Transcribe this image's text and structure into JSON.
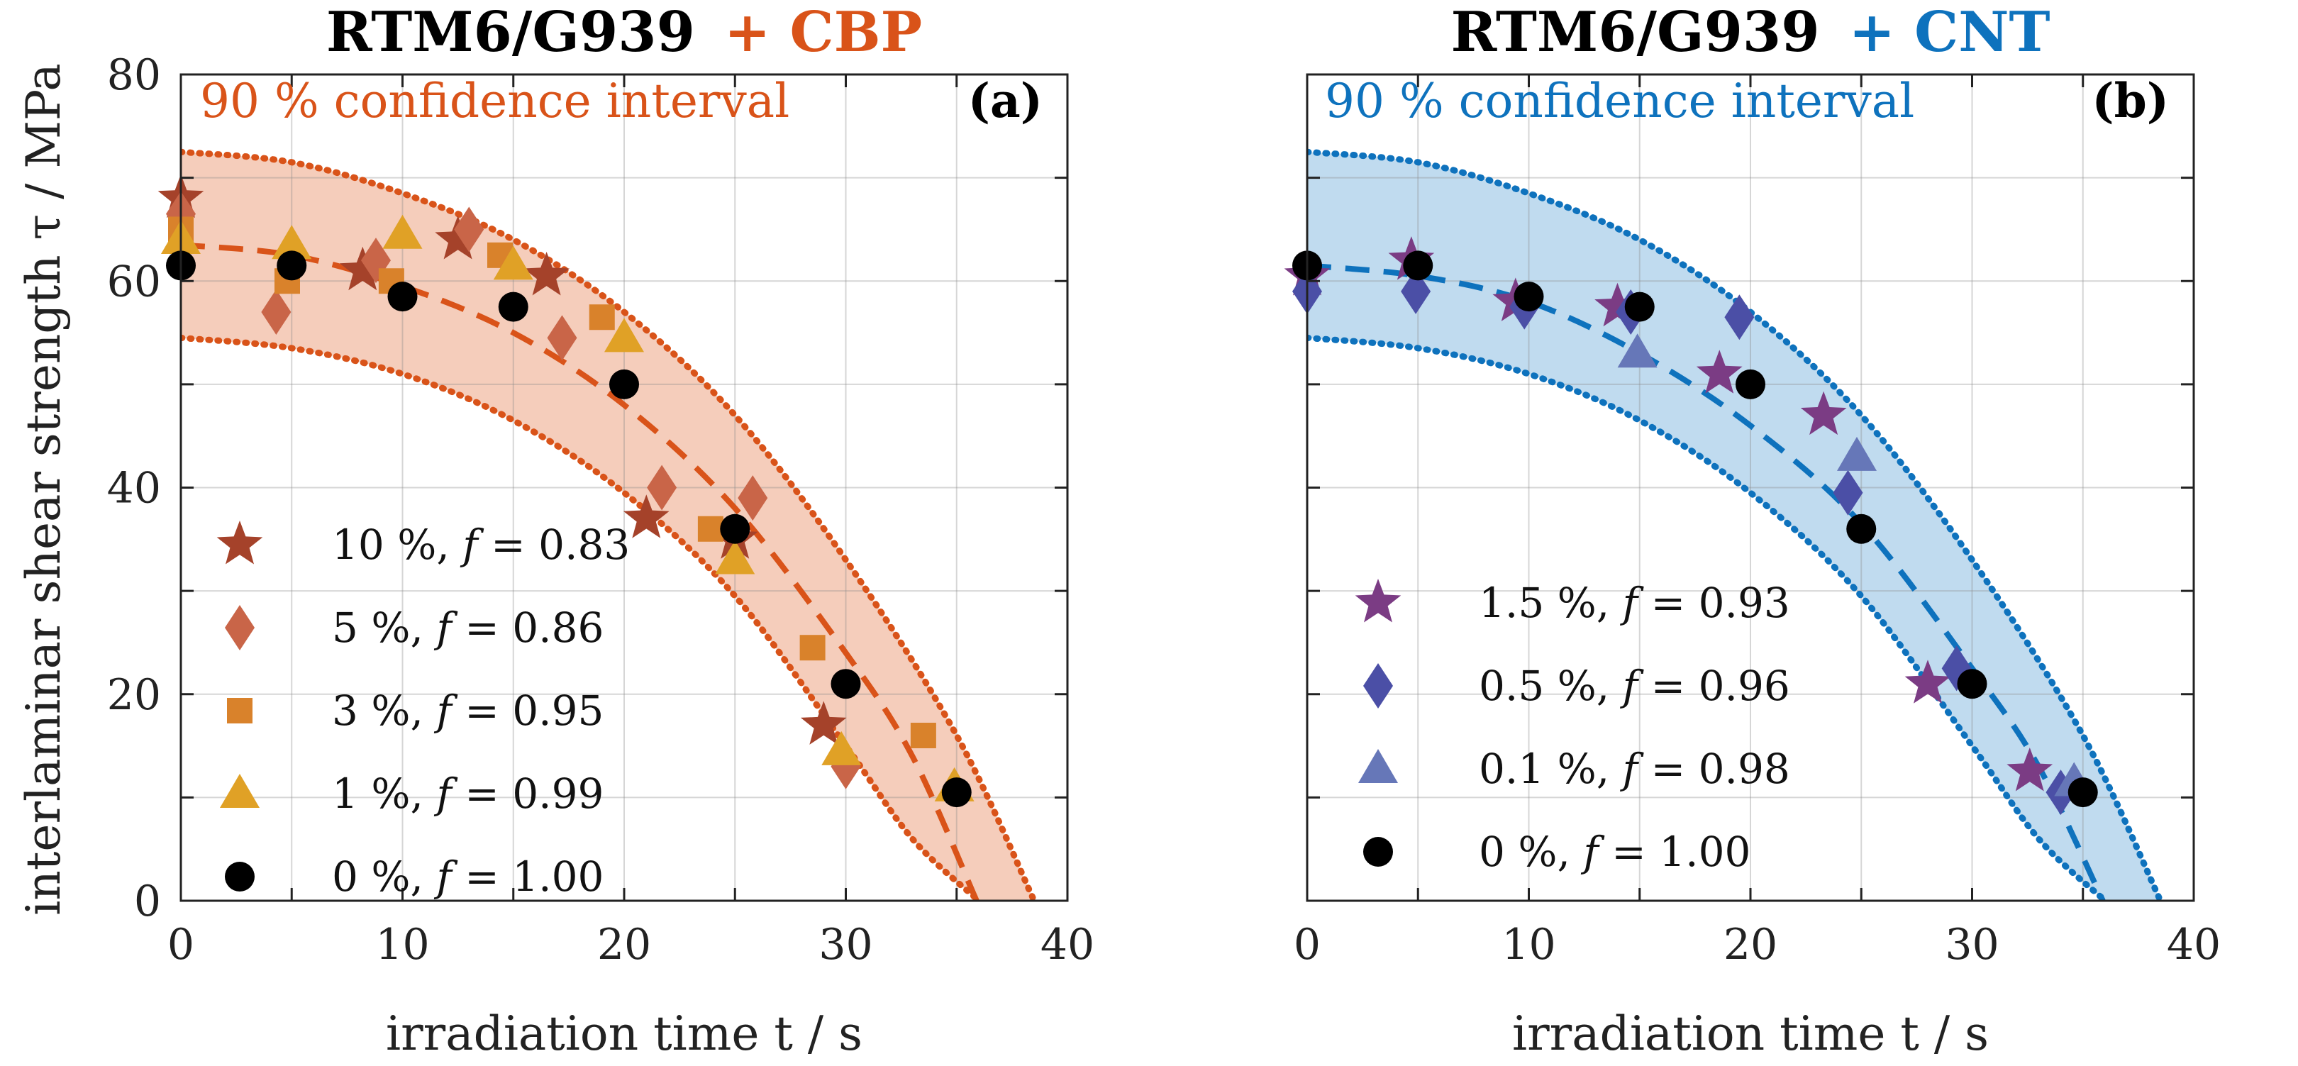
{
  "chart_data": [
    {
      "type": "scatter",
      "panel_label": "(a)",
      "title_main": "RTM6/G939",
      "title_suffix": "+ CBP",
      "title_color": "#d95319",
      "annotation": "90 % confidence interval",
      "annotation_color": "#d95319",
      "xlabel": "irradiation time t / s",
      "ylabel": "interlaminar shear strength τ / MPa",
      "xlim": [
        0,
        40
      ],
      "ylim": [
        0,
        80
      ],
      "xticks": [
        "0",
        "10",
        "20",
        "30",
        "40"
      ],
      "yticks": [
        "0",
        "20",
        "40",
        "60",
        "80"
      ],
      "grid": true,
      "fit": {
        "description": "dashed fit curve",
        "x": [
          0,
          5,
          10,
          15,
          20,
          25,
          30,
          33,
          35.9
        ],
        "y": [
          63.5,
          62.5,
          59.5,
          55,
          48,
          38,
          24,
          14,
          0
        ],
        "color": "#d95319"
      },
      "ci_band": {
        "upper_x": [
          0,
          5,
          10,
          15,
          20,
          25,
          30,
          35,
          38.5
        ],
        "upper_y": [
          72.5,
          71.5,
          68.5,
          64,
          57,
          47,
          33,
          16,
          0
        ],
        "lower_x": [
          0,
          5,
          10,
          15,
          20,
          25,
          30,
          33,
          36
        ],
        "lower_y": [
          54.5,
          53.5,
          51,
          46.5,
          39.5,
          29.5,
          15,
          6,
          0
        ],
        "fill": "#f5cdbb",
        "line_color": "#d95319"
      },
      "series": [
        {
          "name": "10 %",
          "f": "0.83",
          "marker": "star",
          "color": "#a5422a",
          "x": [
            0,
            8.2,
            12.5,
            16.5,
            21,
            25,
            29
          ],
          "y": [
            68,
            61,
            64,
            60.5,
            37,
            35,
            17
          ]
        },
        {
          "name": "5 %",
          "f": "0.86",
          "marker": "diamond",
          "color": "#c96548",
          "x": [
            0,
            4.3,
            8.8,
            13,
            17.2,
            21.7,
            25.8,
            30
          ],
          "y": [
            66.5,
            57,
            62,
            65,
            54.5,
            40,
            39,
            13
          ]
        },
        {
          "name": "3 %",
          "f": "0.95",
          "marker": "square",
          "color": "#d9822b",
          "x": [
            0,
            4.8,
            9.5,
            14.4,
            19,
            23.9,
            28.5,
            33.5
          ],
          "y": [
            65,
            60,
            60,
            62.5,
            56.5,
            36,
            24.5,
            16
          ]
        },
        {
          "name": "1 %",
          "f": "0.99",
          "marker": "triangle",
          "color": "#e0a126",
          "x": [
            0,
            5,
            10,
            15,
            20,
            25,
            29.8,
            34.9
          ],
          "y": [
            64,
            63.5,
            64.5,
            61.5,
            54.5,
            33,
            14.5,
            11
          ]
        },
        {
          "name": "0 %",
          "f": "1.00",
          "marker": "circle",
          "color": "#000000",
          "x": [
            0,
            5,
            10,
            15,
            20,
            25,
            30,
            35
          ],
          "y": [
            61.5,
            61.5,
            58.5,
            57.5,
            50,
            36,
            21,
            10.5
          ]
        }
      ]
    },
    {
      "type": "scatter",
      "panel_label": "(b)",
      "title_main": "RTM6/G939",
      "title_suffix": "+ CNT",
      "title_color": "#0e72bd",
      "annotation": "90 % confidence interval",
      "annotation_color": "#0e72bd",
      "xlabel": "irradiation time t / s",
      "ylabel": "",
      "xlim": [
        0,
        40
      ],
      "ylim": [
        0,
        80
      ],
      "xticks": [
        "0",
        "10",
        "20",
        "30",
        "40"
      ],
      "yticks": [],
      "grid": true,
      "fit": {
        "description": "dashed fit curve",
        "x": [
          0,
          5,
          10,
          15,
          20,
          25,
          30,
          33,
          35.9
        ],
        "y": [
          61.5,
          60.5,
          58,
          53,
          46,
          36.5,
          22.5,
          13,
          0
        ],
        "color": "#0e72bd"
      },
      "ci_band": {
        "upper_x": [
          0,
          5,
          10,
          15,
          20,
          25,
          30,
          35,
          38.5
        ],
        "upper_y": [
          72.5,
          71.5,
          68.5,
          64,
          57,
          47,
          33,
          16,
          0
        ],
        "lower_x": [
          0,
          5,
          10,
          15,
          20,
          25,
          30,
          33,
          36
        ],
        "lower_y": [
          54.5,
          53.5,
          51,
          46.5,
          39.5,
          29.5,
          15,
          6,
          0
        ],
        "fill": "#c0dbef",
        "line_color": "#0e72bd"
      },
      "series": [
        {
          "name": "1.5 %",
          "f": "0.93",
          "marker": "star",
          "color": "#7b3c84",
          "x": [
            0,
            4.7,
            9.4,
            14,
            18.6,
            23.3,
            28,
            32.6
          ],
          "y": [
            60.5,
            62,
            58,
            57.5,
            51,
            47,
            21,
            12.5
          ]
        },
        {
          "name": "0.5 %",
          "f": "0.96",
          "marker": "diamond",
          "color": "#4b4fa6",
          "x": [
            0,
            4.9,
            9.8,
            14.6,
            19.5,
            24.4,
            29.3,
            34
          ],
          "y": [
            59,
            59,
            57.5,
            57,
            56.5,
            39.5,
            22.5,
            10.5
          ]
        },
        {
          "name": "0.1 %",
          "f": "0.98",
          "marker": "triangle",
          "color": "#6677b8",
          "x": [
            14.9,
            24.8,
            34.6
          ],
          "y": [
            53,
            43,
            11.5
          ]
        },
        {
          "name": "0 %",
          "f": "1.00",
          "marker": "circle",
          "color": "#000000",
          "x": [
            0,
            5,
            10,
            15,
            20,
            25,
            30,
            35
          ],
          "y": [
            61.5,
            61.5,
            58.5,
            57.5,
            50,
            36,
            21,
            10.5
          ]
        }
      ]
    }
  ]
}
